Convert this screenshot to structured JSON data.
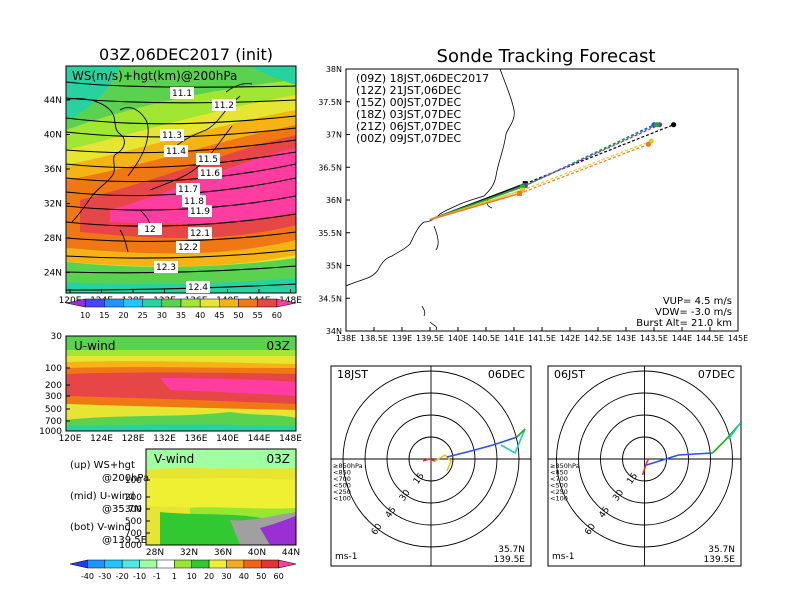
{
  "titles": {
    "left": "03Z,06DEC2017 (init)",
    "right": "Sonde Tracking Forecast"
  },
  "map_panel": {
    "label": "WS(m/s)+hgt(km)@200hPa",
    "lat_ticks": [
      "44N",
      "40N",
      "36N",
      "32N",
      "28N",
      "24N"
    ],
    "lon_ticks": [
      "120E",
      "124E",
      "128E",
      "132E",
      "136E",
      "140E",
      "144E",
      "148E"
    ],
    "contour_labels": [
      "11.1",
      "11.2",
      "11.3",
      "11.4",
      "11.5",
      "11.6",
      "11.7",
      "11.8",
      "11.9",
      "12",
      "12.1",
      "12.2",
      "12.3",
      "12.4"
    ]
  },
  "ws_colorbar": {
    "ticks": [
      "10",
      "15",
      "20",
      "25",
      "30",
      "35",
      "40",
      "45",
      "50",
      "55",
      "60"
    ],
    "colors": [
      "#9b2fd6",
      "#4646ff",
      "#1e96ff",
      "#1ec8ff",
      "#28d2a0",
      "#5ad250",
      "#a0e632",
      "#e6e632",
      "#f5b414",
      "#f07814",
      "#e64646",
      "#ff3ca0"
    ]
  },
  "u_panel": {
    "label": "U-wind",
    "time": "03Z",
    "y_ticks": [
      "30",
      "100",
      "200",
      "300",
      "500",
      "700",
      "1000"
    ],
    "x_ticks": [
      "120E",
      "124E",
      "128E",
      "132E",
      "136E",
      "140E",
      "144E",
      "148E"
    ]
  },
  "v_panel": {
    "label": "V-wind",
    "time": "03Z",
    "y_ticks": [
      "100",
      "200",
      "300",
      "500",
      "700",
      "1000"
    ],
    "x_ticks": [
      "28N",
      "32N",
      "36N",
      "40N",
      "44N"
    ]
  },
  "notes": [
    {
      "key": "(up) WS+hgt",
      "sub": "@200hPa"
    },
    {
      "key": "(mid) U-wind",
      "sub": "@35.7N"
    },
    {
      "key": "(bot) V-wind",
      "sub": "@139.5E"
    }
  ],
  "uv_colorbar": {
    "ticks": [
      "-40",
      "-30",
      "-20",
      "-10",
      "-1",
      "1",
      "10",
      "20",
      "30",
      "40",
      "50",
      "60"
    ],
    "colors": [
      "#1e3cff",
      "#1e96ff",
      "#1ec8ff",
      "#50e6e6",
      "#a0ffa0",
      "#ffffff",
      "#96e632",
      "#32c832",
      "#f0f032",
      "#f5aa1e",
      "#f06414",
      "#e63232",
      "#ff3ca0"
    ]
  },
  "track_panel": {
    "lat_ticks": [
      "38N",
      "37.5N",
      "37N",
      "36.5N",
      "36N",
      "35.5N",
      "35N",
      "34.5N",
      "34N"
    ],
    "lon_ticks": [
      "138E",
      "138.5E",
      "139E",
      "139.5E",
      "140E",
      "140.5E",
      "141E",
      "141.5E",
      "142E",
      "142.5E",
      "143E",
      "143.5E",
      "144E",
      "144.5E",
      "145E"
    ],
    "legend": [
      {
        "text": "(09Z) 18JST,06DEC2017",
        "color": "#000000"
      },
      {
        "text": "(12Z) 21JST,06DEC",
        "color": "#a020c8"
      },
      {
        "text": "(15Z) 00JST,07DEC",
        "color": "#2850ff"
      },
      {
        "text": "(18Z) 03JST,07DEC",
        "color": "#14b414"
      },
      {
        "text": "(21Z) 06JST,07DEC",
        "color": "#e6c81e"
      },
      {
        "text": "(00Z) 09JST,07DEC",
        "color": "#f07828"
      }
    ],
    "params": [
      "VUP= 4.5 m/s",
      "VDW= -3.0 m/s",
      "Burst Alt= 21.0 km"
    ]
  },
  "chart_data": {
    "type": "line",
    "title": "Sonde Tracking Forecast",
    "xlim": [
      138,
      145
    ],
    "ylim": [
      34,
      38
    ],
    "launch": {
      "lon": 139.5,
      "lat": 35.7
    },
    "series": [
      {
        "name": "(09Z) 18JST,06DEC2017",
        "burst": [
          141.2,
          36.25
        ],
        "landing": [
          143.85,
          37.15
        ]
      },
      {
        "name": "(12Z) 21JST,06DEC",
        "burst": [
          141.2,
          36.22
        ],
        "landing": [
          143.6,
          37.15
        ]
      },
      {
        "name": "(15Z) 00JST,07DEC",
        "burst": [
          141.15,
          36.2
        ],
        "landing": [
          143.5,
          37.15
        ]
      },
      {
        "name": "(18Z) 03JST,07DEC",
        "burst": [
          141.15,
          36.2
        ],
        "landing": [
          143.55,
          37.15
        ]
      },
      {
        "name": "(21Z) 06JST,07DEC",
        "burst": [
          141.15,
          36.15
        ],
        "landing": [
          143.45,
          36.9
        ]
      },
      {
        "name": "(00Z) 09JST,07DEC",
        "burst": [
          141.1,
          36.1
        ],
        "landing": [
          143.4,
          36.85
        ]
      }
    ]
  },
  "hodo_left": {
    "time": "18JST",
    "date": "06DEC",
    "rings": [
      "15",
      "30",
      "45",
      "60"
    ],
    "levels": [
      "≥850hPa",
      "<850",
      "<700",
      "<500",
      "<250",
      "<100"
    ],
    "level_colors": [
      "#e63232",
      "#f07828",
      "#e6c81e",
      "#14b414",
      "#1ec8c8",
      "#2850ff"
    ],
    "loc1": "35.7N",
    "loc2": "139.5E",
    "unit": "ms-1"
  },
  "hodo_right": {
    "time": "06JST",
    "date": "07DEC",
    "rings": [
      "15",
      "30",
      "45",
      "60"
    ],
    "levels": [
      "≥850hPa",
      "<850",
      "<700",
      "<500",
      "<250",
      "<100"
    ],
    "level_colors": [
      "#e63232",
      "#f07828",
      "#e6c81e",
      "#14b414",
      "#1ec8c8",
      "#2850ff"
    ],
    "loc1": "35.7N",
    "loc2": "139.5E",
    "unit": "ms-1"
  }
}
